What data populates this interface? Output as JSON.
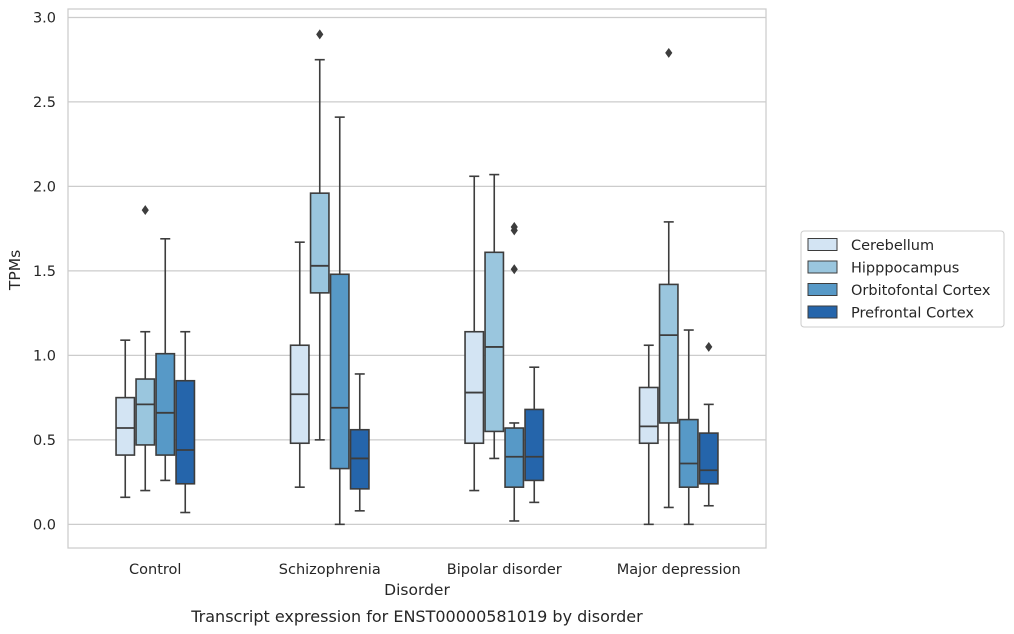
{
  "chart_data": {
    "type": "box",
    "caption": "Transcript expression for ENST00000581019 by disorder",
    "xlabel": "Disorder",
    "ylabel": "TPMs",
    "ylim": [
      -0.14,
      3.05
    ],
    "yticks": [
      0.0,
      0.5,
      1.0,
      1.5,
      2.0,
      2.5,
      3.0
    ],
    "ytick_labels": [
      "0.0",
      "0.5",
      "1.0",
      "1.5",
      "2.0",
      "2.5",
      "3.0"
    ],
    "grid": true,
    "legend_position": "right",
    "categories": [
      "Control",
      "Schizophrenia",
      "Bipolar disorder",
      "Major depression"
    ],
    "series": [
      {
        "name": "Cerebellum",
        "color": "#d3e4f3",
        "boxes": [
          {
            "whislo": 0.16,
            "q1": 0.41,
            "med": 0.57,
            "q3": 0.75,
            "whishi": 1.09,
            "fliers": []
          },
          {
            "whislo": 0.22,
            "q1": 0.48,
            "med": 0.77,
            "q3": 1.06,
            "whishi": 1.67,
            "fliers": []
          },
          {
            "whislo": 0.2,
            "q1": 0.48,
            "med": 0.78,
            "q3": 1.14,
            "whishi": 2.06,
            "fliers": []
          },
          {
            "whislo": 0.0,
            "q1": 0.48,
            "med": 0.58,
            "q3": 0.81,
            "whishi": 1.06,
            "fliers": []
          }
        ]
      },
      {
        "name": "Hipppocampus",
        "color": "#9ac6de",
        "boxes": [
          {
            "whislo": 0.2,
            "q1": 0.47,
            "med": 0.71,
            "q3": 0.86,
            "whishi": 1.14,
            "fliers": [
              1.86
            ]
          },
          {
            "whislo": 0.5,
            "q1": 1.37,
            "med": 1.53,
            "q3": 1.96,
            "whishi": 2.75,
            "fliers": [
              2.9
            ]
          },
          {
            "whislo": 0.39,
            "q1": 0.55,
            "med": 1.05,
            "q3": 1.61,
            "whishi": 2.07,
            "fliers": []
          },
          {
            "whislo": 0.1,
            "q1": 0.6,
            "med": 1.12,
            "q3": 1.42,
            "whishi": 1.79,
            "fliers": [
              2.79
            ]
          }
        ]
      },
      {
        "name": "Orbitofontal Cortex",
        "color": "#5799c7",
        "boxes": [
          {
            "whislo": 0.26,
            "q1": 0.41,
            "med": 0.66,
            "q3": 1.01,
            "whishi": 1.69,
            "fliers": []
          },
          {
            "whislo": 0.0,
            "q1": 0.33,
            "med": 0.69,
            "q3": 1.48,
            "whishi": 2.41,
            "fliers": []
          },
          {
            "whislo": 0.02,
            "q1": 0.22,
            "med": 0.4,
            "q3": 0.57,
            "whishi": 0.6,
            "fliers": [
              1.51,
              1.74,
              1.76
            ]
          },
          {
            "whislo": 0.0,
            "q1": 0.22,
            "med": 0.36,
            "q3": 0.62,
            "whishi": 1.15,
            "fliers": []
          }
        ]
      },
      {
        "name": "Prefrontal Cortex",
        "color": "#2565ab",
        "boxes": [
          {
            "whislo": 0.07,
            "q1": 0.24,
            "med": 0.44,
            "q3": 0.85,
            "whishi": 1.14,
            "fliers": []
          },
          {
            "whislo": 0.08,
            "q1": 0.21,
            "med": 0.39,
            "q3": 0.56,
            "whishi": 0.89,
            "fliers": []
          },
          {
            "whislo": 0.13,
            "q1": 0.26,
            "med": 0.4,
            "q3": 0.68,
            "whishi": 0.93,
            "fliers": []
          },
          {
            "whislo": 0.11,
            "q1": 0.24,
            "med": 0.32,
            "q3": 0.54,
            "whishi": 0.71,
            "fliers": [
              1.05
            ]
          }
        ]
      }
    ]
  }
}
